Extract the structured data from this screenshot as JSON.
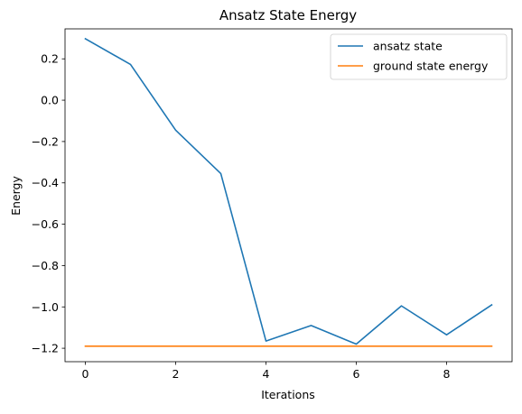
{
  "chart_data": {
    "type": "line",
    "title": "Ansatz State Energy",
    "xlabel": "Iterations",
    "ylabel": "Energy",
    "xlim": [
      -0.45,
      9.45
    ],
    "ylim": [
      -1.265,
      0.345
    ],
    "x_ticks": [
      0,
      2,
      4,
      6,
      8
    ],
    "y_ticks": [
      0.2,
      0.0,
      -0.2,
      -0.4,
      -0.6,
      -0.8,
      -1.0,
      -1.2
    ],
    "y_tick_labels": [
      "0.2",
      "0.0",
      "−0.2",
      "−0.4",
      "−0.6",
      "−0.8",
      "−1.0",
      "−1.2"
    ],
    "grid": false,
    "legend_position": "upper right",
    "x": [
      0,
      1,
      2,
      3,
      4,
      5,
      6,
      7,
      8,
      9
    ],
    "series": [
      {
        "name": "ansatz state",
        "color": "#1f77b4",
        "values": [
          0.297,
          0.173,
          -0.145,
          -0.355,
          -1.165,
          -1.09,
          -1.18,
          -0.995,
          -1.135,
          -0.99
        ]
      },
      {
        "name": "ground state energy",
        "color": "#ff7f0e",
        "values": [
          -1.19,
          -1.19,
          -1.19,
          -1.19,
          -1.19,
          -1.19,
          -1.19,
          -1.19,
          -1.19,
          -1.19
        ]
      }
    ]
  }
}
